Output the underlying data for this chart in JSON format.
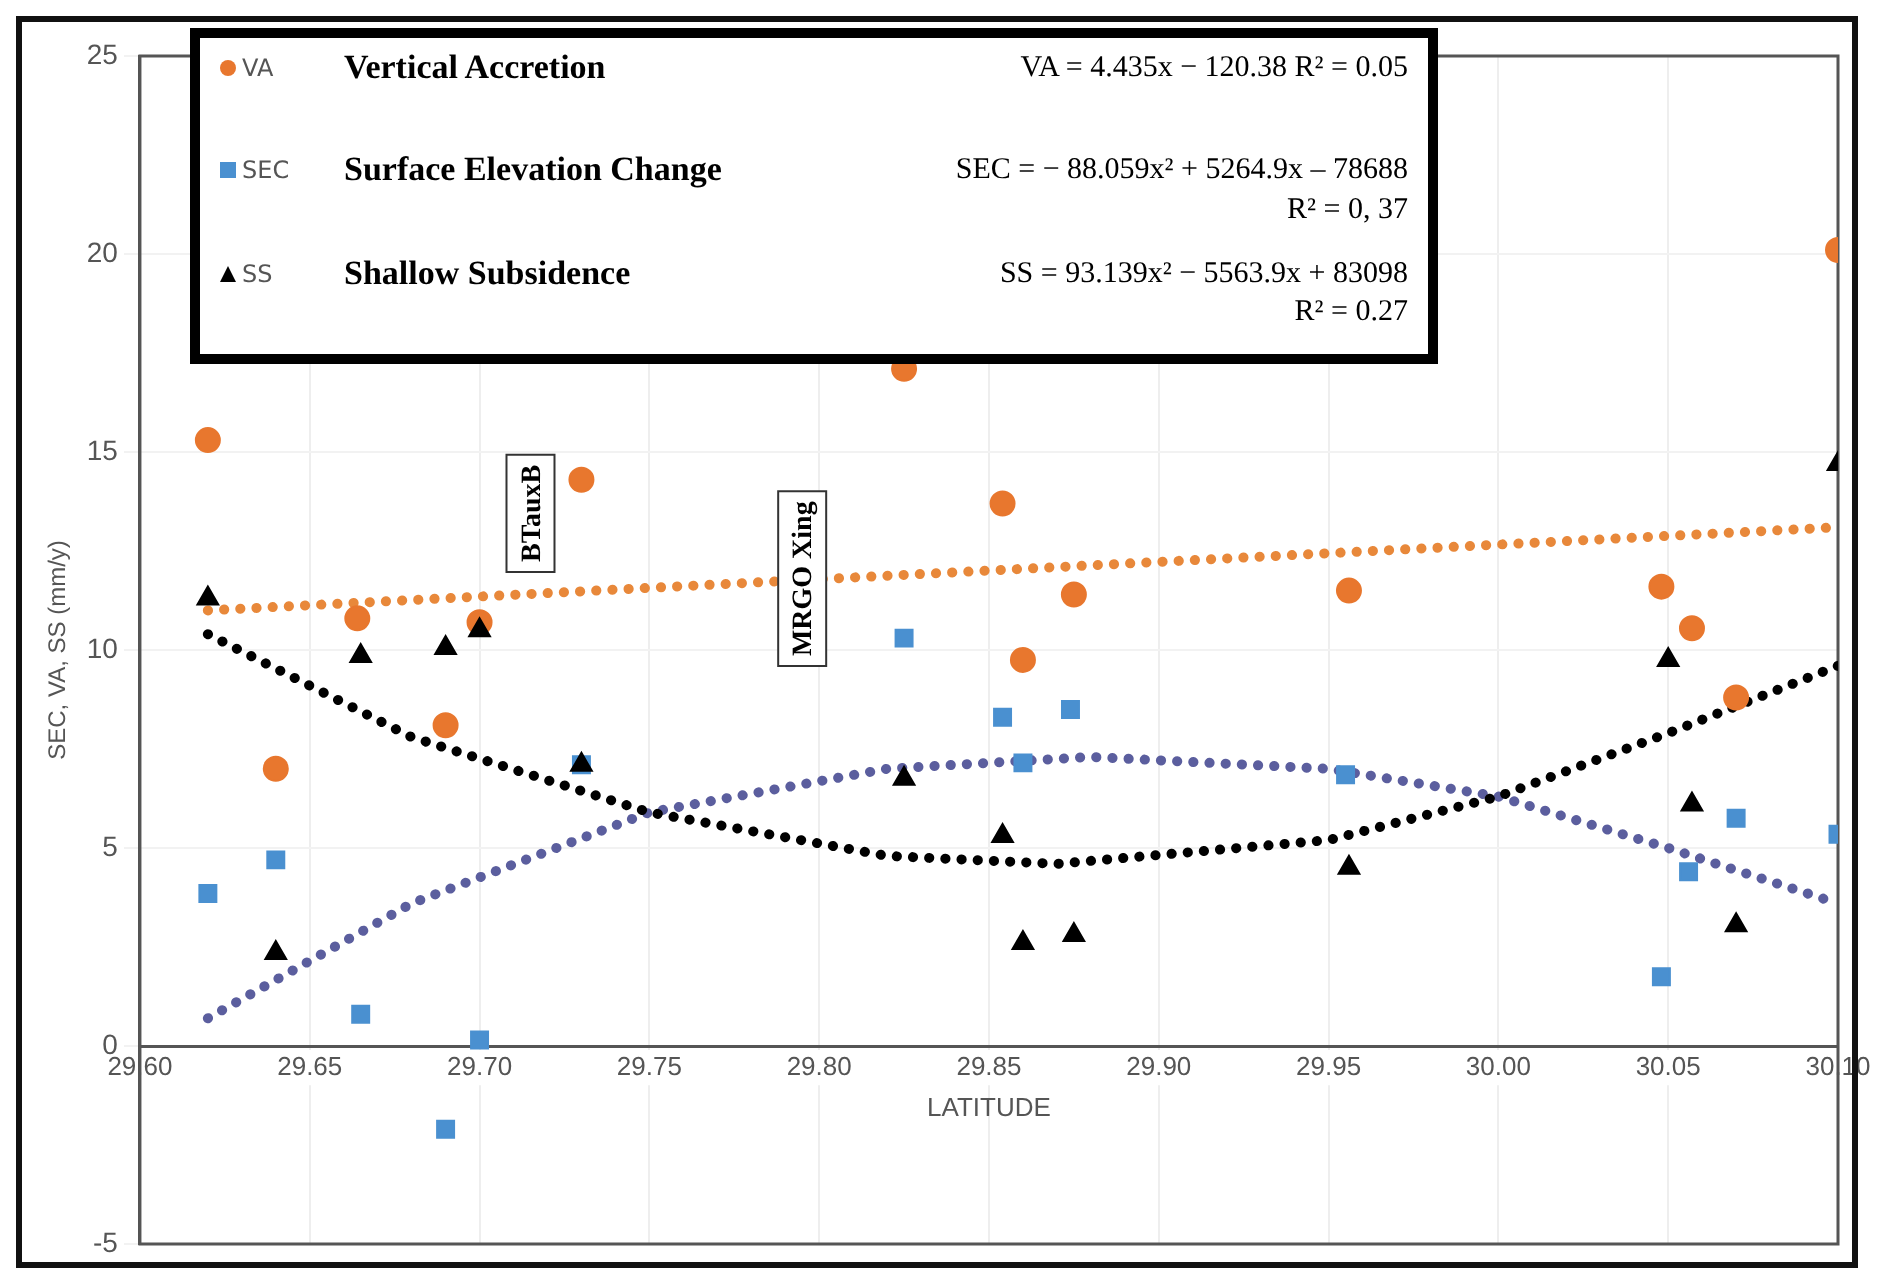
{
  "chart_data": {
    "type": "scatter",
    "xlabel": "LATITUDE",
    "ylabel": "SEC, VA, SS (mm/y)",
    "xlim": [
      29.6,
      30.1
    ],
    "xticks": [
      {
        "value": 29.6,
        "label": "29.60"
      },
      {
        "value": 29.65,
        "label": "29.65"
      },
      {
        "value": 29.7,
        "label": "29.70"
      },
      {
        "value": 29.75,
        "label": "29.75"
      },
      {
        "value": 29.8,
        "label": "29.80"
      },
      {
        "value": 29.85,
        "label": "29.85"
      },
      {
        "value": 29.9,
        "label": "29.90"
      },
      {
        "value": 29.95,
        "label": "29.95"
      },
      {
        "value": 30.0,
        "label": "30.00"
      },
      {
        "value": 30.05,
        "label": "30.05"
      },
      {
        "value": 30.1,
        "label": "30.10"
      }
    ],
    "ylim": [
      -5,
      25
    ],
    "yticks": [
      -5,
      0,
      5,
      10,
      15,
      20,
      25
    ],
    "grid": true,
    "legend": "top",
    "series": [
      {
        "type": "line",
        "color": "#e8883a",
        "line_style": "dotted",
        "marker": "none",
        "x": [
          29.62,
          30.1
        ],
        "values": [
          11.0,
          13.1
        ]
      },
      {
        "type": "line",
        "color": "#5b5e9e",
        "line_style": "dotted",
        "marker": "none",
        "x": [
          29.62,
          29.68,
          29.75,
          29.82,
          29.88,
          29.95,
          30.0,
          30.05,
          30.1
        ],
        "values": [
          0.7,
          3.6,
          5.9,
          7.0,
          7.3,
          7.0,
          6.3,
          5.0,
          3.6
        ]
      },
      {
        "type": "line",
        "color": "#000000",
        "line_style": "dotted",
        "marker": "none",
        "x": [
          29.62,
          29.68,
          29.75,
          29.82,
          29.87,
          29.95,
          30.0,
          30.05,
          30.1
        ],
        "values": [
          10.4,
          7.8,
          5.9,
          4.8,
          4.6,
          5.2,
          6.3,
          7.9,
          9.6
        ]
      },
      {
        "name": "VA",
        "type": "scatter",
        "marker": "circle",
        "color": "#e8772e",
        "x": [
          29.62,
          29.64,
          29.664,
          29.69,
          29.7,
          29.73,
          29.825,
          29.854,
          29.86,
          29.875,
          29.956,
          30.048,
          30.057,
          30.07,
          30.1
        ],
        "values": [
          15.3,
          7.0,
          10.8,
          8.1,
          10.7,
          14.3,
          17.1,
          13.7,
          9.75,
          11.4,
          11.5,
          11.6,
          10.55,
          8.8,
          20.1
        ]
      },
      {
        "name": "SEC",
        "type": "scatter",
        "marker": "square",
        "color": "#4a90d0",
        "x": [
          29.62,
          29.64,
          29.665,
          29.69,
          29.7,
          29.73,
          29.825,
          29.854,
          29.86,
          29.874,
          29.955,
          30.048,
          30.056,
          30.07,
          30.1
        ],
        "values": [
          3.85,
          4.7,
          0.8,
          -2.1,
          0.15,
          7.1,
          10.3,
          8.3,
          7.15,
          8.5,
          6.85,
          1.75,
          4.4,
          5.75,
          5.35
        ]
      },
      {
        "name": "SS",
        "type": "scatter",
        "marker": "triangle",
        "color": "#000000",
        "x": [
          29.62,
          29.64,
          29.665,
          29.69,
          29.7,
          29.73,
          29.825,
          29.854,
          29.86,
          29.875,
          29.956,
          30.05,
          30.057,
          30.07,
          30.1
        ],
        "values": [
          11.3,
          2.35,
          9.85,
          10.05,
          10.5,
          7.1,
          6.75,
          5.3,
          2.6,
          2.8,
          4.5,
          9.75,
          6.1,
          3.05,
          14.7
        ]
      }
    ],
    "annotations": [
      "Vertical Accretion",
      "VA = 4.435x − 120.38   R² = 0.05",
      "Surface Elevation Change",
      "SEC = − 88.059x² + 5264.9x – 78688\nR² = 0, 37",
      "Shallow Subsidence",
      "SS = 93.139x² − 5563.9x + 83098\nR² = 0.27",
      "BTauxB",
      "MRGO Xing"
    ]
  }
}
